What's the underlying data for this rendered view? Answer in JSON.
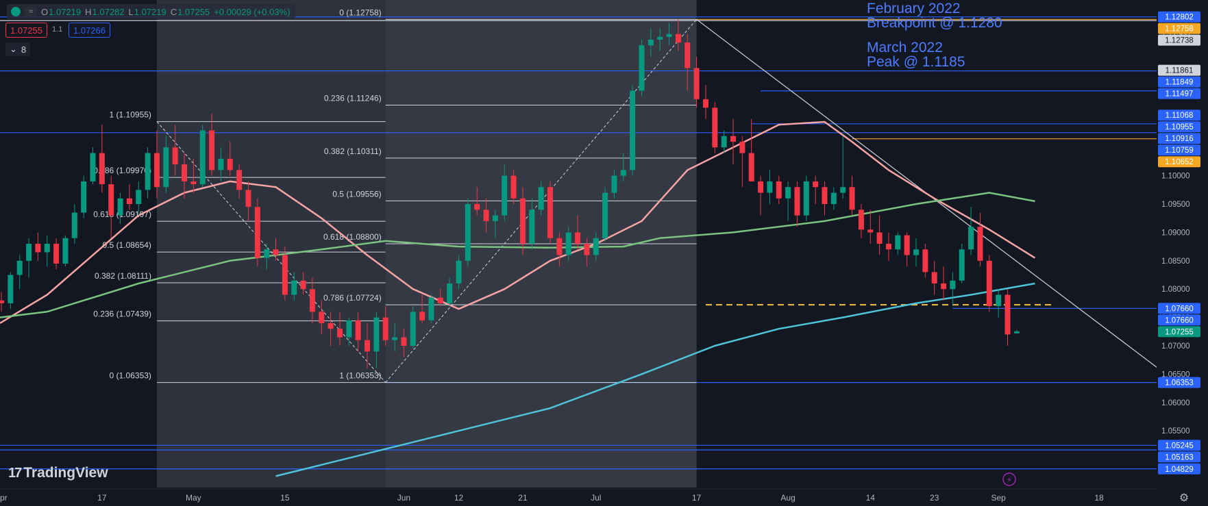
{
  "header": {
    "ohlc": {
      "o": "1.07219",
      "h": "1.07282",
      "l": "1.07219",
      "c": "1.07255",
      "change": "+0.00029 (+0.03%)"
    },
    "sell_price": "1.07255",
    "spread": "1.1",
    "buy_price": "1.07266",
    "indicator_count": "8"
  },
  "logo_text": "TradingView",
  "annotations": [
    {
      "line1": "February 2022",
      "line2": "Breakpoint @ 1.1280"
    },
    {
      "line1": "March 2022",
      "line2": "Peak @ 1.1185"
    }
  ],
  "chart_data": {
    "type": "candlestick",
    "symbol_pair": "EUR/USD",
    "ylim": [
      1.045,
      1.131
    ],
    "x_ticks": [
      {
        "label": "pr",
        "i": -1
      },
      {
        "label": "17",
        "i": 11
      },
      {
        "label": "May",
        "i": 21
      },
      {
        "label": "15",
        "i": 31
      },
      {
        "label": "Jun",
        "i": 44
      },
      {
        "label": "12",
        "i": 50
      },
      {
        "label": "21",
        "i": 57
      },
      {
        "label": "Jul",
        "i": 65
      },
      {
        "label": "17",
        "i": 76
      },
      {
        "label": "Aug",
        "i": 86
      },
      {
        "label": "14",
        "i": 95
      },
      {
        "label": "23",
        "i": 102
      },
      {
        "label": "Sep",
        "i": 109
      },
      {
        "label": "18",
        "i": 120
      }
    ],
    "y_ticks": [
      1.125,
      1.1,
      1.095,
      1.09,
      1.085,
      1.08,
      1.075,
      1.07,
      1.065,
      1.06,
      1.055,
      1.05
    ],
    "price_tags": [
      {
        "value": 1.12802,
        "color": "#2962ff"
      },
      {
        "value": 1.12758,
        "color": "#f5a623"
      },
      {
        "value": 1.12738,
        "color": "#d1d4dc"
      },
      {
        "value": 1.11861,
        "color": "#d1d4dc"
      },
      {
        "value": 1.11849,
        "color": "#2962ff"
      },
      {
        "value": 1.11497,
        "color": "#2962ff"
      },
      {
        "value": 1.11068,
        "color": "#2962ff"
      },
      {
        "value": 1.10955,
        "color": "#2962ff"
      },
      {
        "value": 1.10916,
        "color": "#2962ff"
      },
      {
        "value": 1.10759,
        "color": "#2962ff"
      },
      {
        "value": 1.10652,
        "color": "#f5a623"
      },
      {
        "value": 1.0766,
        "color": "#2962ff"
      },
      {
        "value": 1.0766,
        "color": "#2962ff"
      },
      {
        "value": 1.07255,
        "color": "#089981"
      },
      {
        "value": 1.06353,
        "color": "#2962ff"
      },
      {
        "value": 1.05245,
        "color": "#2962ff"
      },
      {
        "value": 1.05163,
        "color": "#2962ff"
      },
      {
        "value": 1.04829,
        "color": "#2962ff"
      }
    ],
    "fib_sets": [
      {
        "from_i": 17,
        "to_i": 42,
        "levels": [
          {
            "label": "1 (1.10955)",
            "value": 1.10955
          },
          {
            "label": "0.786 (1.09970)",
            "value": 1.0997
          },
          {
            "label": "0.618 (1.09197)",
            "value": 1.09197
          },
          {
            "label": "0.5 (1.08654)",
            "value": 1.08654
          },
          {
            "label": "0.382 (1.08111)",
            "value": 1.08111
          },
          {
            "label": "0.236 (1.07439)",
            "value": 1.07439
          },
          {
            "label": "0 (1.06353)",
            "value": 1.06353
          }
        ]
      },
      {
        "from_i": 42,
        "to_i": 76,
        "levels": [
          {
            "label": "0 (1.12758)",
            "value": 1.12758
          },
          {
            "label": "0.236 (1.11246)",
            "value": 1.11246
          },
          {
            "label": "0.382 (1.10311)",
            "value": 1.10311
          },
          {
            "label": "0.5 (1.09556)",
            "value": 1.09556
          },
          {
            "label": "0.618 (1.08800)",
            "value": 1.088
          },
          {
            "label": "0.786 (1.07724)",
            "value": 1.07724
          },
          {
            "label": "1 (1.06353)",
            "value": 1.06353
          }
        ]
      }
    ],
    "horizontal_lines": [
      {
        "value": 1.12802,
        "color": "#2962ff",
        "from_i": -3
      },
      {
        "value": 1.12738,
        "color": "#d1d4dc",
        "from_i": -3
      },
      {
        "value": 1.12758,
        "color": "#f5a623",
        "from_i": 76
      },
      {
        "value": 1.11849,
        "color": "#2962ff",
        "from_i": -3
      },
      {
        "value": 1.11497,
        "color": "#2962ff",
        "from_i": 83
      },
      {
        "value": 1.10916,
        "color": "#2962ff",
        "from_i": 82
      },
      {
        "value": 1.10759,
        "color": "#2962ff",
        "from_i": -3
      },
      {
        "value": 1.10652,
        "color": "#f5a623",
        "from_i": 93
      },
      {
        "value": 1.0766,
        "color": "#2962ff",
        "from_i": 104
      },
      {
        "value": 1.06353,
        "color": "#2962ff",
        "from_i": 42
      },
      {
        "value": 1.05245,
        "color": "#2962ff",
        "from_i": -3
      },
      {
        "value": 1.05163,
        "color": "#2962ff",
        "from_i": -3
      },
      {
        "value": 1.04829,
        "color": "#2962ff",
        "from_i": -3
      }
    ],
    "dashed_level": {
      "value": 1.07724,
      "from_i": 77,
      "to_i": 115,
      "color": "#f5c242"
    },
    "trendline": {
      "from": {
        "i": 76,
        "v": 1.12758
      },
      "to": {
        "i": 130,
        "v": 1.0617
      }
    },
    "candles": [
      [
        1.078,
        1.0795,
        1.076,
        1.0775
      ],
      [
        1.0775,
        1.083,
        1.0765,
        1.0825
      ],
      [
        1.0825,
        1.086,
        1.08,
        1.085
      ],
      [
        1.085,
        1.089,
        1.082,
        1.088
      ],
      [
        1.088,
        1.09,
        1.085,
        1.0865
      ],
      [
        1.0865,
        1.0895,
        1.084,
        1.088
      ],
      [
        1.088,
        1.089,
        1.0835,
        1.0845
      ],
      [
        1.0845,
        1.0895,
        1.084,
        1.089
      ],
      [
        1.089,
        1.095,
        1.088,
        1.0935
      ],
      [
        1.0935,
        1.1,
        1.0925,
        1.099
      ],
      [
        1.099,
        1.105,
        1.0985,
        1.104
      ],
      [
        1.104,
        1.109,
        1.097,
        1.0985
      ],
      [
        1.0985,
        1.1,
        1.089,
        1.093
      ],
      [
        1.093,
        1.097,
        1.0915,
        1.096
      ],
      [
        1.096,
        1.0985,
        1.094,
        1.095
      ],
      [
        1.095,
        1.099,
        1.093,
        1.0975
      ],
      [
        1.0975,
        1.105,
        1.096,
        1.104
      ],
      [
        1.104,
        1.108,
        1.096,
        1.098
      ],
      [
        1.098,
        1.107,
        1.097,
        1.105
      ],
      [
        1.105,
        1.109,
        1.1,
        1.102
      ],
      [
        1.102,
        1.104,
        1.096,
        1.099
      ],
      [
        1.099,
        1.103,
        1.097,
        1.0985
      ],
      [
        1.0985,
        1.109,
        1.098,
        1.108
      ],
      [
        1.108,
        1.111,
        1.1,
        1.101
      ],
      [
        1.101,
        1.105,
        1.099,
        1.103
      ],
      [
        1.103,
        1.106,
        1.1,
        1.101
      ],
      [
        1.101,
        1.102,
        1.096,
        1.0975
      ],
      [
        1.0975,
        1.099,
        1.092,
        1.0945
      ],
      [
        1.0945,
        1.096,
        1.084,
        1.0855
      ],
      [
        1.0855,
        1.088,
        1.0835,
        1.087
      ],
      [
        1.087,
        1.089,
        1.085,
        1.086
      ],
      [
        1.086,
        1.0875,
        1.078,
        1.079
      ],
      [
        1.079,
        1.083,
        1.078,
        1.0815
      ],
      [
        1.0815,
        1.083,
        1.079,
        1.08
      ],
      [
        1.08,
        1.082,
        1.074,
        1.076
      ],
      [
        1.076,
        1.078,
        1.072,
        1.074
      ],
      [
        1.074,
        1.076,
        1.07,
        1.073
      ],
      [
        1.073,
        1.076,
        1.07,
        1.0715
      ],
      [
        1.0715,
        1.075,
        1.07,
        1.0745
      ],
      [
        1.0745,
        1.076,
        1.069,
        1.071
      ],
      [
        1.071,
        1.074,
        1.066,
        1.069
      ],
      [
        1.069,
        1.076,
        1.066,
        1.075
      ],
      [
        1.075,
        1.077,
        1.07,
        1.071
      ],
      [
        1.071,
        1.074,
        1.069,
        1.0715
      ],
      [
        1.0715,
        1.073,
        1.068,
        1.07
      ],
      [
        1.07,
        1.077,
        1.0695,
        1.076
      ],
      [
        1.076,
        1.079,
        1.074,
        1.0745
      ],
      [
        1.0745,
        1.079,
        1.074,
        1.0785
      ],
      [
        1.0785,
        1.08,
        1.077,
        1.0775
      ],
      [
        1.0775,
        1.082,
        1.077,
        1.081
      ],
      [
        1.081,
        1.086,
        1.08,
        1.085
      ],
      [
        1.085,
        1.096,
        1.084,
        1.095
      ],
      [
        1.095,
        1.098,
        1.093,
        1.094
      ],
      [
        1.094,
        1.096,
        1.09,
        1.092
      ],
      [
        1.092,
        1.094,
        1.089,
        1.093
      ],
      [
        1.093,
        1.102,
        1.092,
        1.1
      ],
      [
        1.1,
        1.101,
        1.095,
        1.096
      ],
      [
        1.096,
        1.098,
        1.086,
        1.088
      ],
      [
        1.088,
        1.096,
        1.087,
        1.094
      ],
      [
        1.094,
        1.099,
        1.093,
        1.098
      ],
      [
        1.098,
        1.099,
        1.088,
        1.089
      ],
      [
        1.089,
        1.09,
        1.084,
        1.086
      ],
      [
        1.086,
        1.091,
        1.085,
        1.09
      ],
      [
        1.09,
        1.093,
        1.087,
        1.088
      ],
      [
        1.088,
        1.089,
        1.084,
        1.086
      ],
      [
        1.086,
        1.09,
        1.085,
        1.089
      ],
      [
        1.089,
        1.098,
        1.0885,
        1.097
      ],
      [
        1.097,
        1.101,
        1.096,
        1.1
      ],
      [
        1.1,
        1.104,
        1.099,
        1.101
      ],
      [
        1.101,
        1.116,
        1.1,
        1.115
      ],
      [
        1.115,
        1.124,
        1.114,
        1.123
      ],
      [
        1.123,
        1.126,
        1.121,
        1.124
      ],
      [
        1.124,
        1.126,
        1.122,
        1.1245
      ],
      [
        1.1245,
        1.127,
        1.123,
        1.125
      ],
      [
        1.125,
        1.1276,
        1.122,
        1.1235
      ],
      [
        1.1235,
        1.125,
        1.115,
        1.119
      ],
      [
        1.119,
        1.121,
        1.112,
        1.1135
      ],
      [
        1.1135,
        1.116,
        1.11,
        1.112
      ],
      [
        1.112,
        1.113,
        1.104,
        1.105
      ],
      [
        1.105,
        1.108,
        1.104,
        1.107
      ],
      [
        1.107,
        1.11,
        1.102,
        1.106
      ],
      [
        1.106,
        1.107,
        1.098,
        1.104
      ],
      [
        1.104,
        1.11,
        1.099,
        1.099
      ],
      [
        1.099,
        1.1,
        1.093,
        1.097
      ],
      [
        1.097,
        1.101,
        1.095,
        1.099
      ],
      [
        1.099,
        1.1,
        1.095,
        1.096
      ],
      [
        1.096,
        1.099,
        1.092,
        1.098
      ],
      [
        1.098,
        1.099,
        1.091,
        1.093
      ],
      [
        1.093,
        1.1,
        1.092,
        1.099
      ],
      [
        1.099,
        1.1,
        1.095,
        1.098
      ],
      [
        1.098,
        1.099,
        1.093,
        1.095
      ],
      [
        1.095,
        1.098,
        1.094,
        1.097
      ],
      [
        1.097,
        1.107,
        1.096,
        1.098
      ],
      [
        1.098,
        1.1,
        1.093,
        1.094
      ],
      [
        1.094,
        1.095,
        1.089,
        1.0905
      ],
      [
        1.0905,
        1.094,
        1.088,
        1.09
      ],
      [
        1.09,
        1.093,
        1.086,
        1.088
      ],
      [
        1.088,
        1.09,
        1.085,
        1.087
      ],
      [
        1.087,
        1.09,
        1.086,
        1.0895
      ],
      [
        1.0895,
        1.09,
        1.084,
        1.086
      ],
      [
        1.086,
        1.089,
        1.084,
        1.087
      ],
      [
        1.087,
        1.088,
        1.082,
        1.083
      ],
      [
        1.083,
        1.085,
        1.079,
        1.081
      ],
      [
        1.081,
        1.084,
        1.078,
        1.08
      ],
      [
        1.08,
        1.083,
        1.077,
        1.0815
      ],
      [
        1.0815,
        1.088,
        1.081,
        1.087
      ],
      [
        1.087,
        1.0945,
        1.086,
        1.091
      ],
      [
        1.091,
        1.0935,
        1.084,
        1.085
      ],
      [
        1.085,
        1.086,
        1.076,
        1.077
      ],
      [
        1.077,
        1.08,
        1.075,
        1.079
      ],
      [
        1.079,
        1.08,
        1.07,
        1.072
      ],
      [
        1.07219,
        1.07282,
        1.07219,
        1.07255
      ]
    ],
    "ma_series": [
      {
        "name": "",
        "color": "#f7a4a4",
        "points": [
          [
            -3,
            1.074
          ],
          [
            5,
            1.079
          ],
          [
            10,
            1.086
          ],
          [
            15,
            1.093
          ],
          [
            20,
            1.097
          ],
          [
            25,
            1.099
          ],
          [
            30,
            1.098
          ],
          [
            35,
            1.0925
          ],
          [
            40,
            1.086
          ],
          [
            45,
            1.08
          ],
          [
            50,
            1.0765
          ],
          [
            55,
            1.08
          ],
          [
            60,
            1.085
          ],
          [
            65,
            1.088
          ],
          [
            70,
            1.092
          ],
          [
            75,
            1.101
          ],
          [
            80,
            1.105
          ],
          [
            85,
            1.109
          ],
          [
            90,
            1.1095
          ],
          [
            93,
            1.106
          ],
          [
            97,
            1.101
          ],
          [
            102,
            1.096
          ],
          [
            108,
            1.0905
          ],
          [
            113,
            1.0855
          ]
        ]
      },
      {
        "name": "",
        "color": "#7bc47f",
        "points": [
          [
            -3,
            1.075
          ],
          [
            5,
            1.076
          ],
          [
            15,
            1.081
          ],
          [
            25,
            1.085
          ],
          [
            35,
            1.087
          ],
          [
            42,
            1.0885
          ],
          [
            50,
            1.0875
          ],
          [
            60,
            1.0873
          ],
          [
            68,
            1.0875
          ],
          [
            72,
            1.089
          ],
          [
            80,
            1.09
          ],
          [
            90,
            1.092
          ],
          [
            100,
            1.095
          ],
          [
            108,
            1.097
          ],
          [
            113,
            1.0955
          ]
        ]
      },
      {
        "name": "",
        "color": "#4fc3d9",
        "points": [
          [
            30,
            1.047
          ],
          [
            40,
            1.051
          ],
          [
            50,
            1.055
          ],
          [
            60,
            1.059
          ],
          [
            70,
            1.065
          ],
          [
            78,
            1.07
          ],
          [
            85,
            1.073
          ],
          [
            92,
            1.075
          ],
          [
            100,
            1.0775
          ],
          [
            106,
            1.079
          ],
          [
            113,
            1.081
          ]
        ]
      }
    ],
    "shaded_ranges": [
      {
        "from_i": 17,
        "to_i": 42
      },
      {
        "from_i": 42,
        "to_i": 76
      }
    ]
  }
}
